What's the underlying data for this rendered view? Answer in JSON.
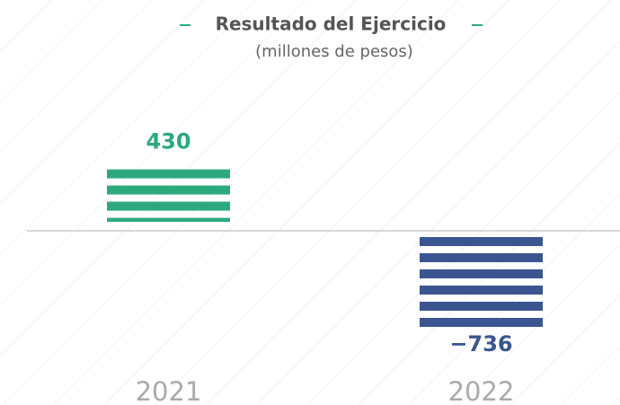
{
  "chart_data": {
    "type": "bar",
    "title": "Resultado del Ejercicio",
    "subtitle": "(millones de pesos)",
    "categories": [
      "2021",
      "2022"
    ],
    "values": [
      430,
      -736
    ],
    "value_labels": [
      "430",
      "−736"
    ],
    "colors": [
      "#2daa7d",
      "#3a5590"
    ]
  }
}
